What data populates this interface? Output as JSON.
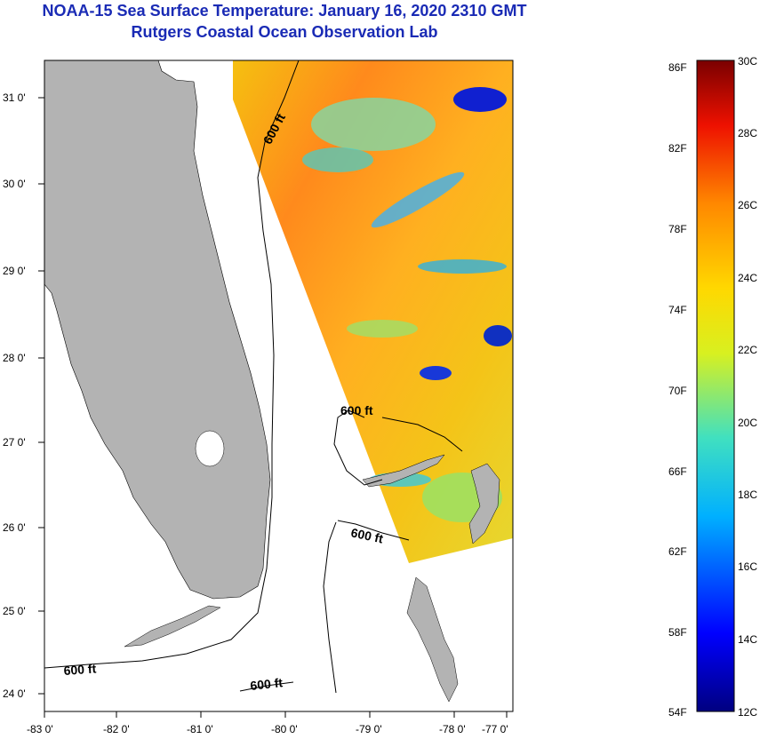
{
  "header": {
    "title": "NOAA-15 Sea Surface Temperature:  January 16, 2020 2310 GMT",
    "subtitle": "Rutgers Coastal Ocean Observation Lab"
  },
  "map": {
    "lon_ticks": [
      "-83 0'",
      "-82 0'",
      "-81 0'",
      "-80 0'",
      "-79 0'",
      "-78 0'",
      "-77 0'"
    ],
    "lat_ticks": [
      "31 0'",
      "30 0'",
      "29 0'",
      "28 0'",
      "27 0'",
      "26 0'",
      "25 0'",
      "24 0'"
    ],
    "contour_labels": [
      "600 ft",
      "600 ft",
      "600 ft",
      "600 ft",
      "600 ft"
    ],
    "colors": {
      "land": "#b3b3b3",
      "no_data": "#ffffff",
      "frame": "#000000"
    }
  },
  "colorbar": {
    "fahrenheit_labels": [
      "86F",
      "82F",
      "78F",
      "74F",
      "70F",
      "66F",
      "62F",
      "58F",
      "54F"
    ],
    "celsius_labels": [
      "30C",
      "28C",
      "26C",
      "24C",
      "22C",
      "20C",
      "18C",
      "16C",
      "14C",
      "12C"
    ],
    "range_c": [
      12,
      30
    ]
  }
}
